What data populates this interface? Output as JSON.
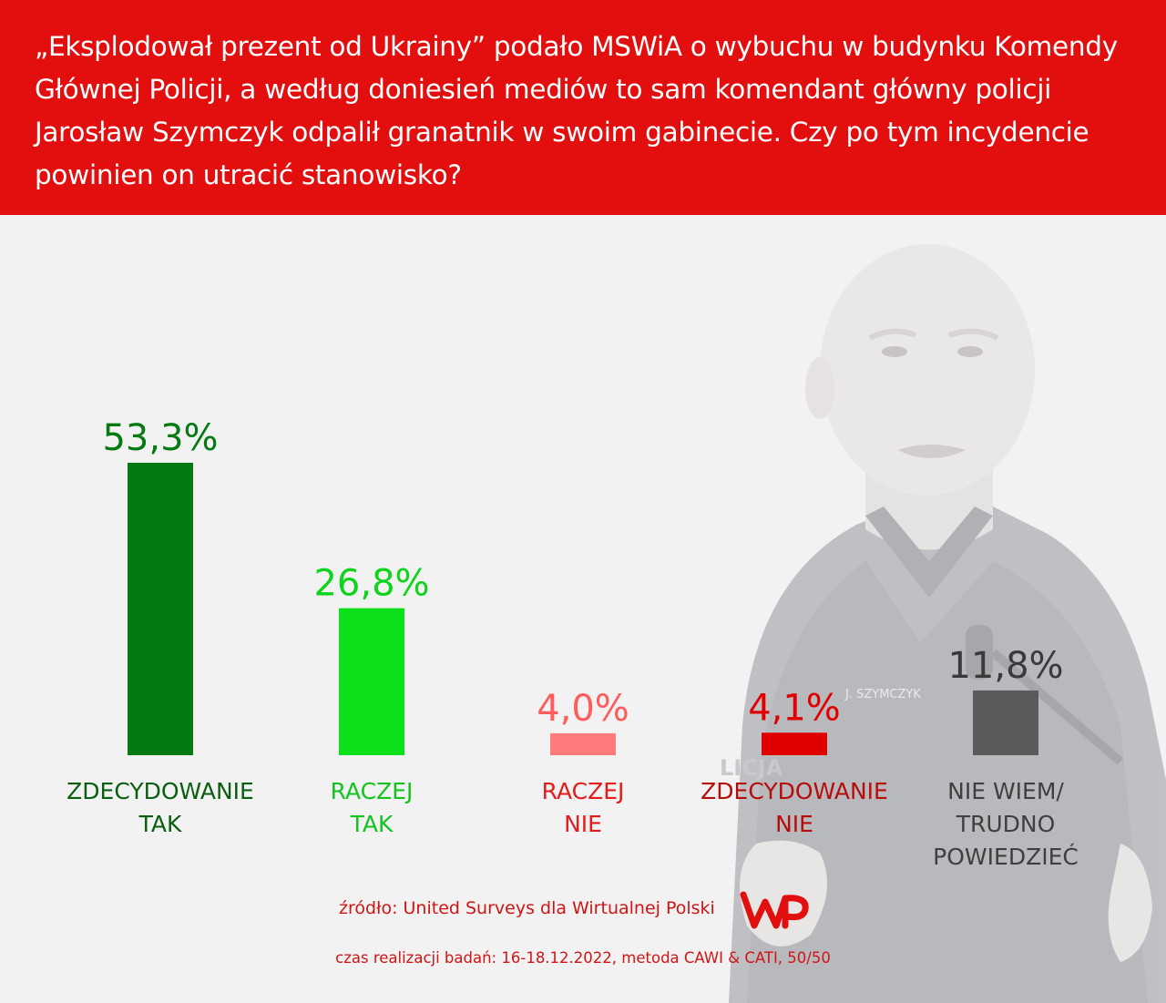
{
  "header": {
    "question": "„Eksplodował prezent od Ukrainy” podało MSWiA o wybuchu w budynku Komendy Głównej Policji, a według doniesień mediów to sam komendant główny policji Jarosław Szymczyk odpalił granatnik w swoim gabinecie. Czy po tym incydencie powinien on utracić stanowisko?"
  },
  "photo": {
    "badge_text": "J. SZYMCZYK",
    "sleeve_text": "LICJA"
  },
  "chart_data": {
    "type": "bar",
    "categories": [
      "ZDECYDOWANIE\nTAK",
      "RACZEJ\nTAK",
      "RACZEJ\nNIE",
      "ZDECYDOWANIE\nNIE",
      "NIE WIEM/\nTRUDNO\nPOWIEDZIEĆ"
    ],
    "values": [
      53.3,
      26.8,
      4.0,
      4.1,
      11.8
    ],
    "value_labels": [
      "53,3%",
      "26,8%",
      "4,0%",
      "4,1%",
      "11,8%"
    ],
    "colors": [
      "#067a12",
      "#0be01b",
      "#ff7b7b",
      "#e10000",
      "#5a5a5a"
    ],
    "label_colors": [
      "#067a12",
      "#0fd41c",
      "#ff5c5c",
      "#e10000",
      "#3a3a3a"
    ],
    "category_colors": [
      "#0b5d12",
      "#12c41e",
      "#e31b1b",
      "#b80c0c",
      "#3f3f3f"
    ],
    "title": "",
    "xlabel": "",
    "ylabel": "",
    "ylim": [
      0,
      53.3
    ],
    "grid": false,
    "legend": "none"
  },
  "footer": {
    "source": "źródło: United Surveys dla Wirtualnej Polski",
    "logo_text": "WP",
    "method": "czas realizacji badań: 16-18.12.2022, metoda CAWI & CATI, 50/50"
  }
}
